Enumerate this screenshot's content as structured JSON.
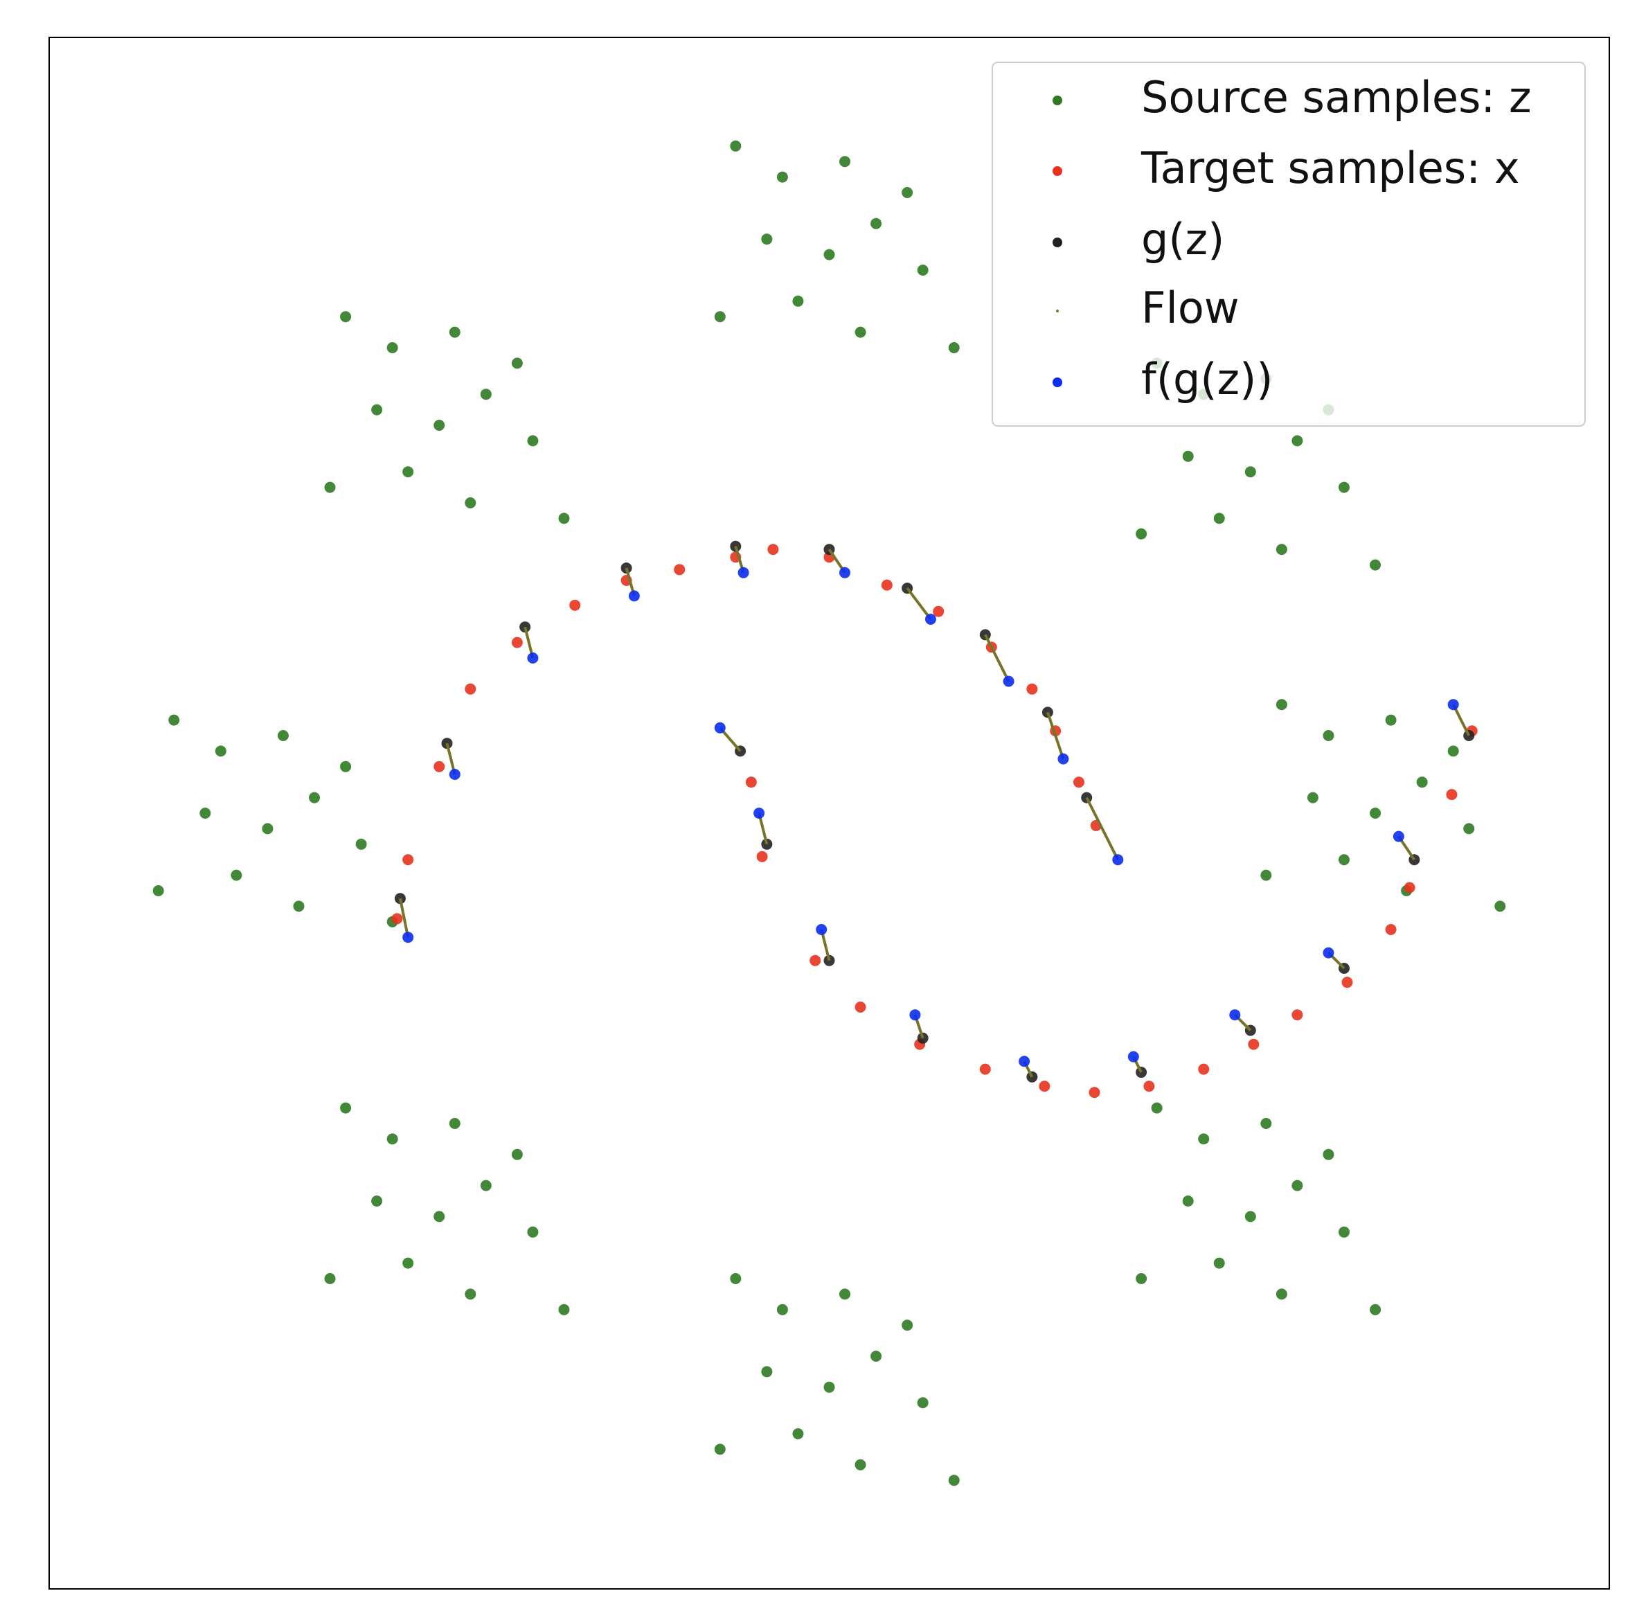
{
  "chart_data": {
    "type": "scatter",
    "xlim": [
      0,
      100
    ],
    "ylim": [
      0,
      100
    ],
    "legend": "upper right",
    "series": [
      {
        "name": "Source samples: z",
        "color": "#2f7a22",
        "x": [
          25,
          28,
          21,
          27,
          23,
          31,
          18,
          26,
          22,
          30,
          19,
          33,
          50,
          53,
          46,
          52,
          48,
          56,
          43,
          51,
          47,
          55,
          44,
          58,
          77,
          80,
          73,
          79,
          75,
          83,
          70,
          78,
          74,
          82,
          71,
          85,
          14,
          17,
          10,
          16,
          12,
          20,
          7,
          15,
          11,
          19,
          8,
          22,
          85,
          88,
          81,
          87,
          83,
          91,
          78,
          86,
          82,
          90,
          79,
          93,
          25,
          28,
          21,
          27,
          23,
          31,
          18,
          26,
          22,
          30,
          19,
          33,
          50,
          53,
          46,
          52,
          48,
          56,
          43,
          51,
          47,
          55,
          44,
          58,
          77,
          80,
          73,
          79,
          75,
          83,
          70,
          78,
          74,
          82,
          71,
          85
        ],
        "values": [
          75,
          77,
          76,
          70,
          72,
          74,
          71,
          81,
          80,
          79,
          82,
          69,
          86,
          88,
          87,
          81,
          83,
          85,
          82,
          92,
          91,
          90,
          93,
          80,
          72,
          74,
          73,
          67,
          69,
          71,
          68,
          78,
          77,
          76,
          79,
          66,
          49,
          51,
          50,
          44,
          46,
          48,
          45,
          55,
          54,
          53,
          56,
          43,
          50,
          52,
          51,
          45,
          47,
          49,
          46,
          56,
          55,
          54,
          57,
          44,
          24,
          26,
          25,
          19,
          21,
          23,
          20,
          30,
          29,
          28,
          31,
          18,
          13,
          15,
          14,
          8,
          10,
          12,
          9,
          19,
          18,
          17,
          20,
          7,
          24,
          26,
          25,
          19,
          21,
          23,
          20,
          30,
          29,
          28,
          31,
          18
        ]
      },
      {
        "name": "Target samples: x",
        "color": "#e8321e",
        "x": [
          22.3,
          23,
          25,
          27,
          30,
          33.7,
          37,
          40.4,
          44,
          46.4,
          50,
          53.7,
          57,
          60.4,
          63,
          64.5,
          66,
          67.1,
          45,
          45.7,
          49.1,
          52,
          55.8,
          60,
          63.8,
          67,
          70.5,
          74,
          77.2,
          80,
          83.2,
          86,
          87.2,
          89.9,
          91.2
        ],
        "values": [
          43.2,
          47,
          53,
          58,
          61,
          63.4,
          65,
          65.7,
          66.5,
          67,
          66.5,
          64.7,
          63,
          60.7,
          58,
          55.3,
          52,
          49.2,
          52,
          47.2,
          40.5,
          37.5,
          35.1,
          33.5,
          32.4,
          32,
          32.4,
          33.5,
          35.1,
          37,
          39.1,
          42.5,
          45.2,
          51.2,
          55.3
        ]
      },
      {
        "name": "g(z)",
        "color": "#222222",
        "x": [
          22.5,
          25.5,
          30.5,
          37,
          44,
          50,
          55,
          60,
          64,
          66.5,
          44.3,
          46,
          50,
          56,
          63,
          70,
          77,
          83,
          87.5,
          91
        ],
        "values": [
          44.5,
          54.5,
          62,
          65.8,
          67.2,
          67,
          64.5,
          61.5,
          56.5,
          51,
          54,
          48,
          40.5,
          35.5,
          33,
          33.3,
          36,
          40,
          47,
          55
        ]
      },
      {
        "name": "Flow",
        "color": "#77742a"
      },
      {
        "name": "f(g(z))",
        "color": "#0a2ef0",
        "x": [
          23,
          26,
          31,
          37.5,
          44.5,
          51,
          56.5,
          61.5,
          65,
          68.5,
          43,
          45.5,
          49.5,
          55.5,
          62.5,
          69.5,
          76,
          82,
          86.5,
          90
        ],
        "values": [
          42,
          52.5,
          60,
          64,
          65.5,
          65.5,
          62.5,
          58.5,
          53.5,
          47,
          55.5,
          50,
          42.5,
          37,
          34,
          34.3,
          37,
          41,
          48.5,
          57
        ]
      }
    ]
  }
}
